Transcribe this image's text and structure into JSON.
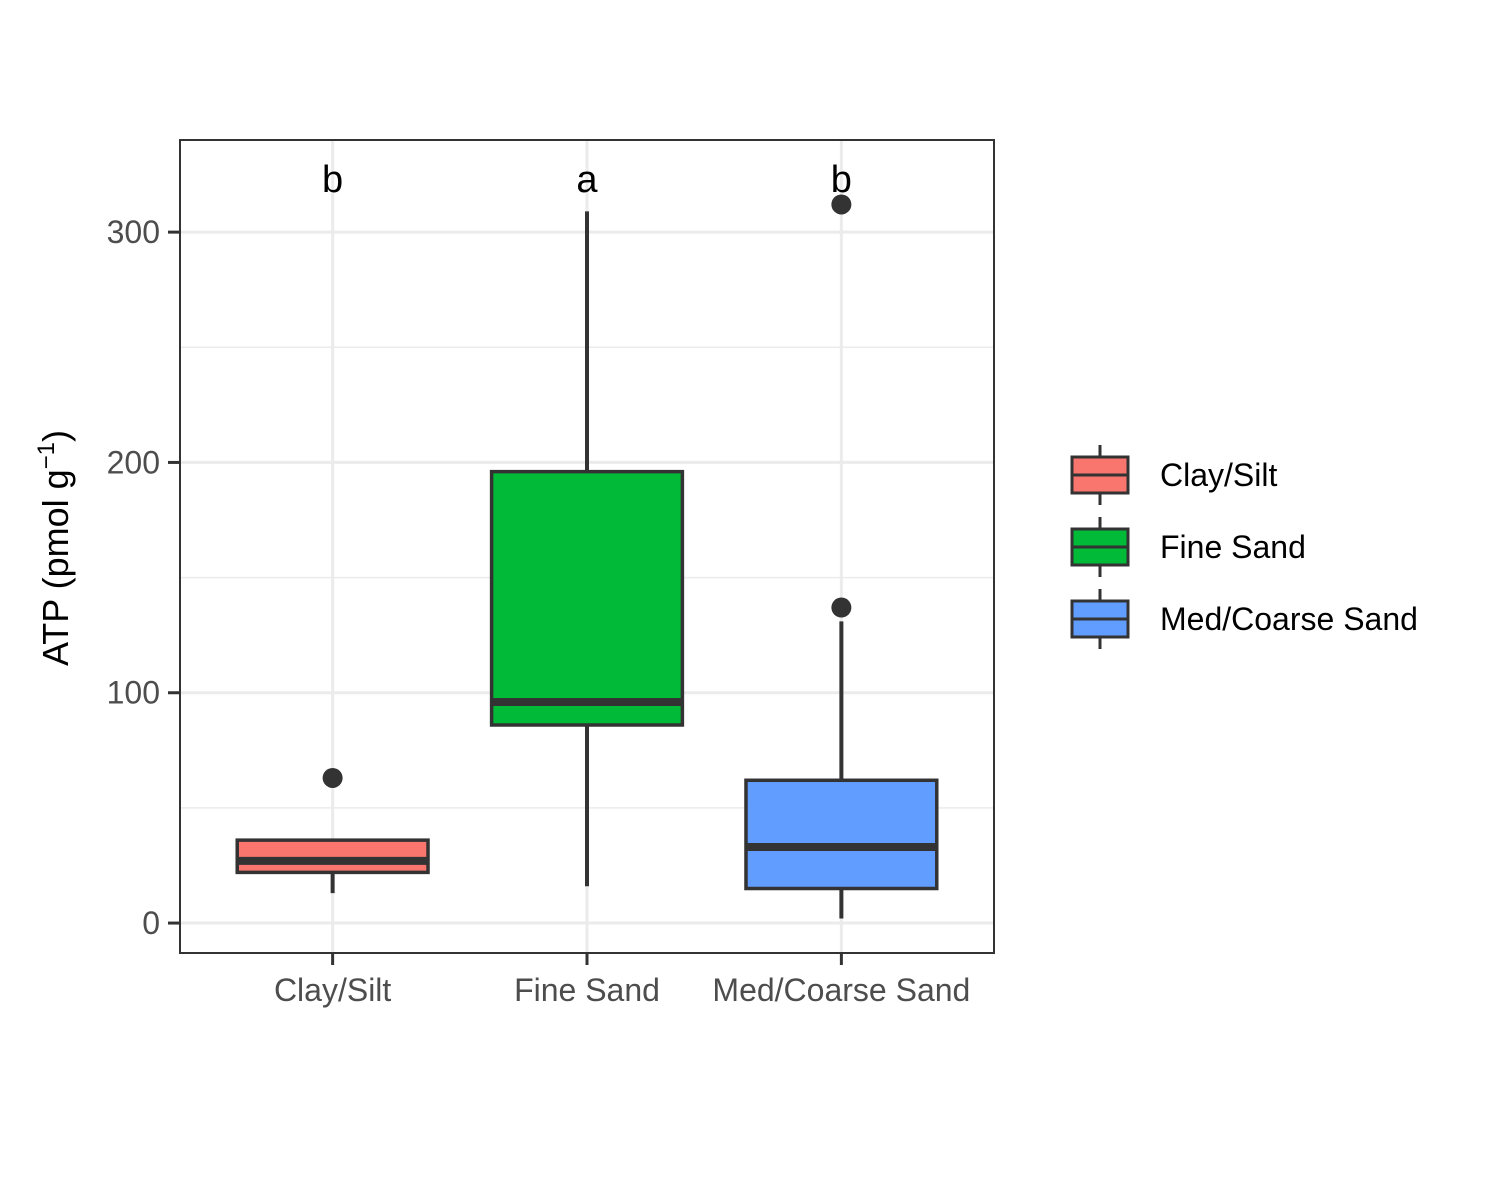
{
  "chart_data": {
    "type": "box",
    "title": "",
    "xlabel": "",
    "ylabel": {
      "main": "ATP (pmol g",
      "superscript": "−1",
      "close": ")"
    },
    "ylim": [
      -13,
      340
    ],
    "yticks": [
      0,
      100,
      200,
      300
    ],
    "grid": true,
    "legend_position": "right",
    "categories": [
      "Clay/Silt",
      "Fine Sand",
      "Med/Coarse Sand"
    ],
    "series": [
      {
        "name": "Clay/Silt",
        "color": "#F8766D",
        "whisker_low": 13,
        "q1": 22,
        "median": 27,
        "q3": 36,
        "whisker_high": 36,
        "outliers": [
          63
        ],
        "letter": "b"
      },
      {
        "name": "Fine Sand",
        "color": "#00BA38",
        "whisker_low": 16,
        "q1": 86,
        "median": 96,
        "q3": 196,
        "whisker_high": 309,
        "outliers": [],
        "letter": "a"
      },
      {
        "name": "Med/Coarse Sand",
        "color": "#619CFF",
        "whisker_low": 2,
        "q1": 15,
        "median": 33,
        "q3": 62,
        "whisker_high": 131,
        "outliers": [
          137,
          312
        ],
        "letter": "b"
      }
    ],
    "legend": [
      "Clay/Silt",
      "Fine Sand",
      "Med/Coarse Sand"
    ]
  }
}
